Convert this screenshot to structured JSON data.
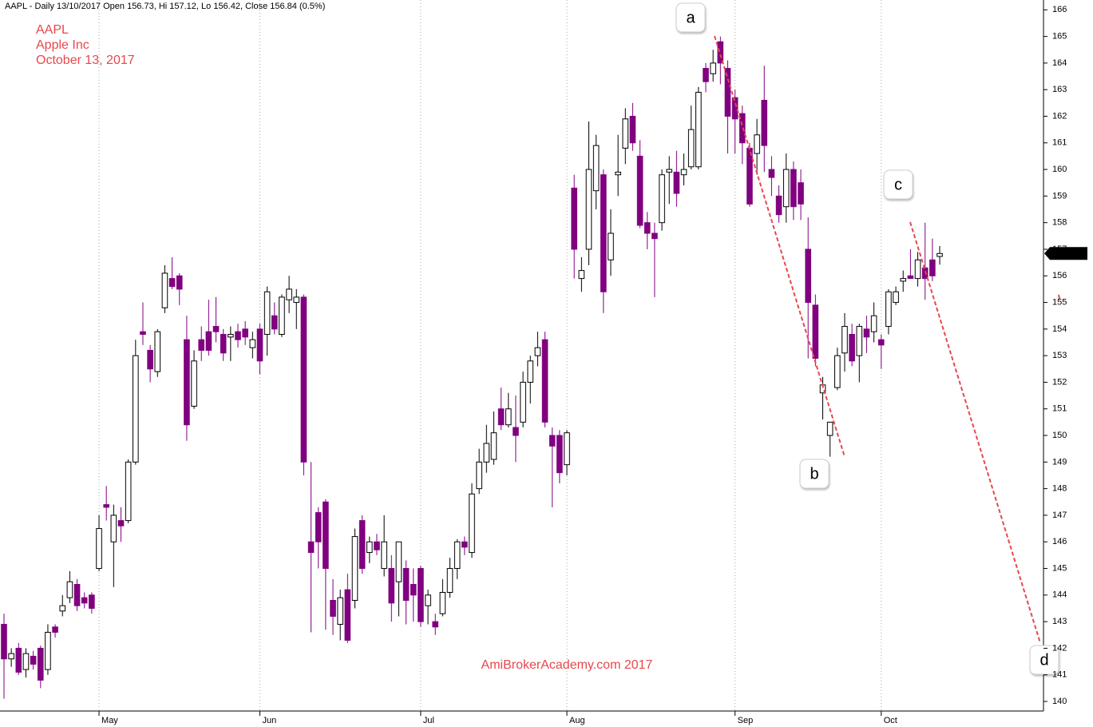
{
  "chart_data": {
    "type": "candlestick",
    "header": "AAPL - Daily 13/10/2017 Open 156.73, Hi 157.12, Lo 156.42, Close 156.84 (0.5%)",
    "title_lines": [
      "AAPL",
      "Apple Inc",
      "October 13, 2017"
    ],
    "watermark": "AmiBrokerAcademy.com  2017",
    "annotations": [
      "a",
      "b",
      "c",
      "d"
    ],
    "categories": [
      null,
      null,
      null,
      null,
      null,
      null,
      null,
      null,
      null,
      null,
      null,
      null,
      null,
      "May",
      null,
      null,
      null,
      null,
      null,
      null,
      null,
      null,
      null,
      null,
      null,
      null,
      null,
      null,
      null,
      null,
      null,
      null,
      null,
      null,
      null,
      "Jun",
      null,
      null,
      null,
      null,
      null,
      null,
      null,
      null,
      null,
      null,
      null,
      null,
      null,
      null,
      null,
      null,
      null,
      null,
      null,
      null,
      null,
      "Jul",
      null,
      null,
      null,
      null,
      null,
      null,
      null,
      null,
      null,
      null,
      null,
      null,
      null,
      null,
      null,
      null,
      null,
      null,
      null,
      "Aug",
      null,
      null,
      null,
      null,
      null,
      null,
      null,
      null,
      null,
      null,
      null,
      null,
      null,
      null,
      null,
      null,
      null,
      null,
      null,
      null,
      null,
      null,
      "Sep",
      null,
      null,
      null,
      null,
      null,
      null,
      null,
      null,
      null,
      null,
      null,
      null,
      null,
      null,
      null,
      null,
      null,
      null,
      null,
      "Oct",
      null,
      null,
      null,
      null,
      null,
      null,
      null,
      null
    ],
    "open": [
      142.9,
      141.6,
      142.0,
      141.2,
      141.7,
      142.0,
      141.2,
      142.8,
      143.4,
      143.9,
      144.4,
      143.9,
      144.0,
      145.0,
      147.4,
      146.0,
      146.8,
      146.8,
      149.0,
      153.9,
      153.2,
      152.4,
      154.8,
      155.9,
      156.0,
      153.6,
      151.1,
      153.6,
      153.9,
      154.1,
      153.8,
      153.7,
      153.9,
      154.0,
      153.3,
      154.0,
      153.8,
      154.5,
      153.8,
      155.1,
      155.0,
      155.2,
      146.0,
      147.1,
      147.5,
      143.8,
      142.9,
      144.2,
      143.8,
      146.8,
      145.6,
      146.0,
      145.0,
      145.0,
      144.5,
      145.0,
      144.4,
      145.0,
      143.6,
      143.0,
      143.3,
      144.1,
      145.0,
      146.0,
      145.6,
      148.0,
      149.0,
      149.1,
      151.0,
      150.4,
      150.3,
      150.5,
      152.0,
      153.0,
      153.6,
      150.0,
      150.0,
      148.9,
      159.3,
      155.9,
      157.0,
      159.2,
      159.8,
      156.6,
      159.8,
      160.8,
      162.0,
      160.5,
      158.0,
      157.6,
      158.0,
      159.9,
      159.9,
      159.8,
      160.1,
      160.1,
      163.8,
      163.6,
      164.8,
      163.8,
      162.7,
      162.1,
      160.8,
      160.6,
      162.6,
      160.0,
      159.0,
      158.6,
      160.0,
      159.5,
      157.0,
      154.9,
      151.6,
      150.0,
      151.8,
      153.1,
      153.8,
      153.0,
      154.0,
      153.9,
      153.6,
      154.1,
      155.0,
      155.8,
      156.0,
      155.9,
      156.3,
      156.6,
      156.73
    ],
    "high": [
      143.3,
      142.0,
      142.2,
      142.0,
      141.9,
      142.1,
      142.9,
      142.9,
      144.0,
      144.9,
      144.6,
      144.1,
      144.1,
      147.0,
      148.1,
      147.4,
      147.3,
      149.1,
      153.6,
      155.0,
      153.4,
      154.0,
      156.4,
      156.7,
      156.1,
      154.5,
      153.2,
      154.1,
      155.1,
      155.2,
      154.0,
      154.1,
      154.2,
      154.3,
      153.9,
      154.2,
      155.6,
      155.0,
      155.3,
      156.0,
      155.5,
      155.3,
      149.0,
      147.3,
      147.6,
      144.6,
      144.2,
      144.8,
      146.5,
      147.0,
      146.2,
      146.3,
      147.0,
      145.5,
      146.0,
      145.3,
      145.0,
      145.1,
      144.2,
      143.3,
      144.6,
      145.4,
      146.1,
      146.2,
      148.2,
      149.5,
      150.4,
      150.9,
      151.8,
      151.6,
      151.5,
      152.4,
      153.0,
      153.9,
      153.9,
      150.3,
      150.2,
      150.2,
      159.8,
      156.7,
      161.8,
      161.3,
      160.0,
      158.5,
      161.3,
      162.3,
      162.5,
      161.1,
      158.4,
      158.0,
      160.0,
      160.5,
      160.7,
      160.6,
      162.4,
      163.1,
      164.0,
      164.5,
      165.0,
      164.1,
      163.0,
      162.4,
      161.0,
      161.9,
      163.9,
      160.5,
      159.4,
      160.6,
      160.3,
      160.0,
      158.2,
      155.3,
      152.2,
      150.5,
      153.3,
      154.6,
      154.2,
      154.2,
      154.5,
      155.0,
      153.8,
      155.5,
      155.6,
      156.2,
      157.0,
      156.9,
      158.0,
      157.4,
      157.12
    ],
    "low": [
      140.1,
      141.3,
      141.0,
      140.9,
      141.2,
      140.5,
      141.0,
      142.4,
      143.2,
      143.7,
      143.4,
      143.5,
      143.3,
      144.9,
      146.8,
      144.3,
      146.0,
      146.7,
      148.9,
      153.4,
      152.0,
      152.2,
      154.6,
      155.5,
      154.9,
      149.8,
      151.0,
      152.8,
      153.0,
      153.5,
      152.8,
      152.8,
      153.3,
      153.4,
      152.9,
      152.3,
      153.0,
      153.8,
      153.7,
      154.6,
      154.0,
      148.5,
      142.6,
      145.0,
      142.7,
      142.5,
      142.3,
      142.2,
      143.5,
      144.8,
      145.2,
      145.5,
      144.7,
      143.0,
      143.2,
      142.9,
      143.0,
      142.8,
      142.9,
      142.5,
      143.2,
      143.9,
      144.6,
      145.5,
      145.4,
      147.8,
      148.6,
      148.9,
      150.2,
      150.3,
      149.0,
      150.3,
      151.2,
      152.6,
      150.3,
      147.3,
      148.2,
      148.5,
      155.9,
      155.4,
      156.4,
      158.5,
      154.6,
      156.0,
      159.0,
      160.2,
      160.7,
      157.8,
      157.0,
      155.2,
      157.7,
      158.7,
      158.6,
      159.4,
      160.0,
      160.0,
      162.9,
      163.3,
      163.2,
      160.6,
      160.6,
      160.2,
      158.6,
      159.8,
      159.9,
      159.0,
      158.0,
      158.0,
      158.1,
      158.1,
      152.9,
      152.6,
      150.6,
      149.2,
      151.7,
      152.4,
      152.6,
      152.0,
      153.1,
      153.5,
      152.5,
      153.8,
      154.9,
      155.4,
      155.9,
      155.6,
      155.1,
      155.8,
      156.42
    ],
    "close": [
      141.6,
      141.8,
      141.1,
      141.8,
      141.4,
      140.8,
      142.6,
      142.6,
      143.6,
      144.5,
      143.6,
      143.7,
      143.5,
      146.5,
      147.3,
      147.0,
      146.6,
      149.0,
      153.0,
      153.8,
      152.5,
      153.9,
      156.1,
      155.6,
      155.5,
      150.4,
      152.8,
      153.2,
      153.2,
      153.9,
      153.1,
      153.8,
      153.6,
      153.7,
      153.6,
      152.8,
      155.4,
      154.0,
      155.2,
      155.5,
      155.2,
      149.0,
      145.6,
      146.0,
      145.0,
      143.2,
      143.9,
      142.3,
      146.2,
      145.0,
      146.0,
      145.7,
      146.0,
      143.7,
      146.0,
      143.8,
      144.0,
      143.0,
      144.0,
      142.8,
      144.1,
      145.0,
      146.0,
      145.8,
      147.8,
      149.0,
      149.7,
      150.1,
      150.4,
      151.0,
      150.0,
      152.0,
      152.8,
      153.3,
      150.5,
      149.6,
      148.6,
      150.1,
      157.0,
      156.2,
      160.0,
      160.9,
      155.4,
      157.6,
      159.9,
      161.9,
      161.0,
      157.9,
      157.6,
      157.4,
      159.8,
      160.0,
      159.1,
      160.0,
      161.5,
      162.9,
      163.3,
      164.0,
      164.0,
      162.0,
      161.9,
      161.0,
      158.7,
      161.3,
      160.9,
      159.7,
      158.3,
      160.0,
      158.6,
      158.7,
      155.0,
      152.9,
      151.9,
      150.5,
      153.0,
      154.1,
      152.8,
      154.1,
      153.7,
      154.5,
      153.4,
      155.4,
      155.4,
      155.9,
      155.9,
      156.6,
      155.9,
      156.0,
      156.84
    ],
    "up_color": "#ffffff",
    "down_color": "#800080",
    "ylim": [
      139.64,
      166.37
    ],
    "yticks": [
      140,
      141,
      142,
      143,
      144,
      145,
      146,
      147,
      148,
      149,
      150,
      151,
      152,
      153,
      154,
      155,
      156,
      157,
      158,
      159,
      160,
      161,
      162,
      163,
      164,
      165,
      166
    ],
    "grid": true
  }
}
